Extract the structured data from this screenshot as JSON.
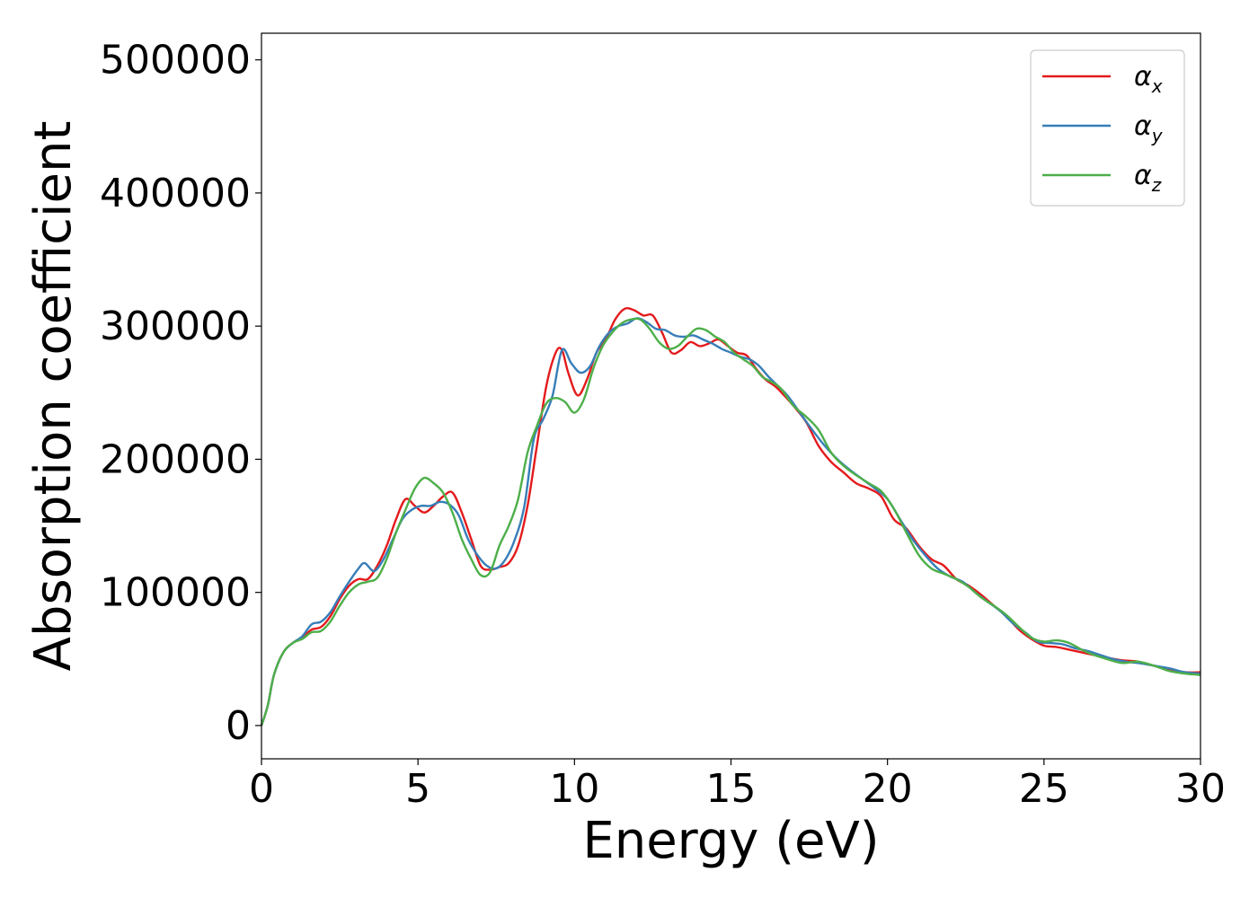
{
  "chart_data": {
    "type": "line",
    "title": "",
    "xlabel": "Energy (eV)",
    "ylabel": "Absorption coefficient",
    "xlim": [
      0,
      30
    ],
    "ylim": [
      -25000,
      520000
    ],
    "xticks": [
      0,
      5,
      10,
      15,
      20,
      25,
      30
    ],
    "yticks": [
      0,
      100000,
      200000,
      300000,
      400000,
      500000
    ],
    "grid": false,
    "legend_position": "top-right",
    "series": [
      {
        "name": "αx",
        "symbol": "α",
        "subscript": "x",
        "color": "#e41a1c",
        "points": [
          [
            0,
            0
          ],
          [
            0.2,
            15000
          ],
          [
            0.4,
            38000
          ],
          [
            0.7,
            55000
          ],
          [
            1.0,
            62000
          ],
          [
            1.3,
            66000
          ],
          [
            1.6,
            72000
          ],
          [
            1.9,
            74000
          ],
          [
            2.2,
            82000
          ],
          [
            2.5,
            95000
          ],
          [
            2.8,
            105000
          ],
          [
            3.1,
            110000
          ],
          [
            3.4,
            110000
          ],
          [
            3.7,
            120000
          ],
          [
            4.0,
            135000
          ],
          [
            4.3,
            155000
          ],
          [
            4.6,
            170000
          ],
          [
            4.9,
            165000
          ],
          [
            5.2,
            160000
          ],
          [
            5.5,
            165000
          ],
          [
            5.8,
            172000
          ],
          [
            6.1,
            175000
          ],
          [
            6.4,
            160000
          ],
          [
            6.7,
            140000
          ],
          [
            7.0,
            120000
          ],
          [
            7.3,
            117000
          ],
          [
            7.6,
            119000
          ],
          [
            7.9,
            122000
          ],
          [
            8.2,
            135000
          ],
          [
            8.5,
            165000
          ],
          [
            8.8,
            210000
          ],
          [
            9.1,
            255000
          ],
          [
            9.4,
            280000
          ],
          [
            9.6,
            282000
          ],
          [
            9.8,
            265000
          ],
          [
            10.1,
            248000
          ],
          [
            10.4,
            260000
          ],
          [
            10.7,
            280000
          ],
          [
            11.0,
            290000
          ],
          [
            11.3,
            305000
          ],
          [
            11.6,
            313000
          ],
          [
            11.9,
            312000
          ],
          [
            12.2,
            308000
          ],
          [
            12.5,
            308000
          ],
          [
            12.8,
            295000
          ],
          [
            13.1,
            280000
          ],
          [
            13.4,
            282000
          ],
          [
            13.7,
            288000
          ],
          [
            14.0,
            285000
          ],
          [
            14.3,
            287000
          ],
          [
            14.6,
            290000
          ],
          [
            14.9,
            285000
          ],
          [
            15.2,
            280000
          ],
          [
            15.5,
            278000
          ],
          [
            15.8,
            268000
          ],
          [
            16.1,
            260000
          ],
          [
            16.4,
            255000
          ],
          [
            16.7,
            248000
          ],
          [
            17.0,
            240000
          ],
          [
            17.4,
            228000
          ],
          [
            17.8,
            210000
          ],
          [
            18.2,
            198000
          ],
          [
            18.6,
            190000
          ],
          [
            19.0,
            182000
          ],
          [
            19.4,
            178000
          ],
          [
            19.8,
            172000
          ],
          [
            20.2,
            155000
          ],
          [
            20.6,
            148000
          ],
          [
            21.0,
            135000
          ],
          [
            21.4,
            125000
          ],
          [
            21.8,
            120000
          ],
          [
            22.2,
            110000
          ],
          [
            22.6,
            105000
          ],
          [
            23.0,
            98000
          ],
          [
            23.4,
            90000
          ],
          [
            23.8,
            82000
          ],
          [
            24.2,
            72000
          ],
          [
            24.6,
            65000
          ],
          [
            25.0,
            60000
          ],
          [
            25.4,
            59000
          ],
          [
            25.8,
            57000
          ],
          [
            26.2,
            55000
          ],
          [
            26.6,
            53000
          ],
          [
            27.0,
            51000
          ],
          [
            27.5,
            49000
          ],
          [
            28.0,
            48000
          ],
          [
            28.5,
            45000
          ],
          [
            29.0,
            42000
          ],
          [
            29.5,
            40000
          ],
          [
            30.0,
            40000
          ]
        ]
      },
      {
        "name": "αy",
        "symbol": "α",
        "subscript": "y",
        "color": "#377eb8",
        "points": [
          [
            0,
            0
          ],
          [
            0.2,
            15000
          ],
          [
            0.4,
            38000
          ],
          [
            0.7,
            55000
          ],
          [
            1.0,
            62000
          ],
          [
            1.3,
            67000
          ],
          [
            1.6,
            76000
          ],
          [
            1.9,
            78000
          ],
          [
            2.2,
            85000
          ],
          [
            2.5,
            97000
          ],
          [
            2.8,
            108000
          ],
          [
            3.1,
            118000
          ],
          [
            3.3,
            122000
          ],
          [
            3.6,
            116000
          ],
          [
            3.9,
            125000
          ],
          [
            4.2,
            140000
          ],
          [
            4.5,
            155000
          ],
          [
            4.8,
            162000
          ],
          [
            5.1,
            165000
          ],
          [
            5.4,
            165000
          ],
          [
            5.7,
            168000
          ],
          [
            6.0,
            166000
          ],
          [
            6.3,
            158000
          ],
          [
            6.6,
            140000
          ],
          [
            6.9,
            128000
          ],
          [
            7.2,
            120000
          ],
          [
            7.5,
            118000
          ],
          [
            7.8,
            125000
          ],
          [
            8.1,
            140000
          ],
          [
            8.4,
            165000
          ],
          [
            8.7,
            215000
          ],
          [
            9.0,
            230000
          ],
          [
            9.3,
            248000
          ],
          [
            9.6,
            282000
          ],
          [
            9.9,
            272000
          ],
          [
            10.2,
            265000
          ],
          [
            10.5,
            270000
          ],
          [
            10.8,
            285000
          ],
          [
            11.1,
            295000
          ],
          [
            11.4,
            300000
          ],
          [
            11.7,
            302000
          ],
          [
            12.0,
            306000
          ],
          [
            12.3,
            303000
          ],
          [
            12.6,
            298000
          ],
          [
            12.9,
            297000
          ],
          [
            13.2,
            293000
          ],
          [
            13.5,
            292000
          ],
          [
            13.8,
            293000
          ],
          [
            14.1,
            290000
          ],
          [
            14.4,
            287000
          ],
          [
            14.7,
            283000
          ],
          [
            15.0,
            280000
          ],
          [
            15.3,
            277000
          ],
          [
            15.6,
            275000
          ],
          [
            15.9,
            270000
          ],
          [
            16.2,
            262000
          ],
          [
            16.5,
            255000
          ],
          [
            16.8,
            248000
          ],
          [
            17.2,
            235000
          ],
          [
            17.6,
            222000
          ],
          [
            18.0,
            210000
          ],
          [
            18.4,
            200000
          ],
          [
            18.8,
            192000
          ],
          [
            19.2,
            185000
          ],
          [
            19.6,
            178000
          ],
          [
            20.0,
            170000
          ],
          [
            20.4,
            155000
          ],
          [
            20.8,
            140000
          ],
          [
            21.2,
            128000
          ],
          [
            21.6,
            118000
          ],
          [
            22.0,
            112000
          ],
          [
            22.4,
            108000
          ],
          [
            22.8,
            100000
          ],
          [
            23.2,
            93000
          ],
          [
            23.6,
            86000
          ],
          [
            24.0,
            77000
          ],
          [
            24.4,
            70000
          ],
          [
            24.8,
            63000
          ],
          [
            25.2,
            62000
          ],
          [
            25.6,
            61000
          ],
          [
            26.0,
            58000
          ],
          [
            26.4,
            56000
          ],
          [
            26.8,
            53000
          ],
          [
            27.2,
            50000
          ],
          [
            27.6,
            48000
          ],
          [
            28.0,
            47000
          ],
          [
            28.5,
            45000
          ],
          [
            29.0,
            43000
          ],
          [
            29.5,
            40000
          ],
          [
            30.0,
            39000
          ]
        ]
      },
      {
        "name": "αz",
        "symbol": "α",
        "subscript": "z",
        "color": "#4daf4a",
        "points": [
          [
            0,
            0
          ],
          [
            0.2,
            15000
          ],
          [
            0.4,
            38000
          ],
          [
            0.7,
            55000
          ],
          [
            1.0,
            62000
          ],
          [
            1.3,
            65000
          ],
          [
            1.6,
            70000
          ],
          [
            1.9,
            71000
          ],
          [
            2.2,
            78000
          ],
          [
            2.5,
            90000
          ],
          [
            2.8,
            100000
          ],
          [
            3.1,
            106000
          ],
          [
            3.4,
            108000
          ],
          [
            3.7,
            111000
          ],
          [
            4.0,
            125000
          ],
          [
            4.3,
            145000
          ],
          [
            4.6,
            162000
          ],
          [
            4.9,
            178000
          ],
          [
            5.2,
            186000
          ],
          [
            5.5,
            182000
          ],
          [
            5.8,
            175000
          ],
          [
            6.1,
            160000
          ],
          [
            6.4,
            140000
          ],
          [
            6.7,
            125000
          ],
          [
            7.0,
            113000
          ],
          [
            7.3,
            115000
          ],
          [
            7.6,
            135000
          ],
          [
            7.9,
            150000
          ],
          [
            8.2,
            170000
          ],
          [
            8.5,
            205000
          ],
          [
            8.8,
            225000
          ],
          [
            9.1,
            242000
          ],
          [
            9.4,
            246000
          ],
          [
            9.7,
            243000
          ],
          [
            10.0,
            235000
          ],
          [
            10.3,
            245000
          ],
          [
            10.6,
            268000
          ],
          [
            10.9,
            285000
          ],
          [
            11.2,
            295000
          ],
          [
            11.5,
            302000
          ],
          [
            11.8,
            305000
          ],
          [
            12.1,
            305000
          ],
          [
            12.4,
            298000
          ],
          [
            12.7,
            288000
          ],
          [
            13.0,
            283000
          ],
          [
            13.3,
            285000
          ],
          [
            13.6,
            292000
          ],
          [
            13.9,
            298000
          ],
          [
            14.2,
            297000
          ],
          [
            14.5,
            292000
          ],
          [
            14.8,
            288000
          ],
          [
            15.1,
            280000
          ],
          [
            15.4,
            275000
          ],
          [
            15.7,
            270000
          ],
          [
            16.0,
            262000
          ],
          [
            16.3,
            258000
          ],
          [
            16.6,
            253000
          ],
          [
            17.0,
            240000
          ],
          [
            17.4,
            232000
          ],
          [
            17.8,
            222000
          ],
          [
            18.2,
            205000
          ],
          [
            18.6,
            195000
          ],
          [
            19.0,
            188000
          ],
          [
            19.4,
            182000
          ],
          [
            19.8,
            176000
          ],
          [
            20.2,
            163000
          ],
          [
            20.6,
            145000
          ],
          [
            21.0,
            128000
          ],
          [
            21.4,
            118000
          ],
          [
            21.8,
            114000
          ],
          [
            22.2,
            110000
          ],
          [
            22.6,
            104000
          ],
          [
            23.0,
            96000
          ],
          [
            23.4,
            90000
          ],
          [
            23.8,
            83000
          ],
          [
            24.2,
            74000
          ],
          [
            24.6,
            66000
          ],
          [
            25.0,
            63000
          ],
          [
            25.4,
            64000
          ],
          [
            25.8,
            62000
          ],
          [
            26.2,
            57000
          ],
          [
            26.6,
            53000
          ],
          [
            27.0,
            50000
          ],
          [
            27.5,
            47000
          ],
          [
            28.0,
            48000
          ],
          [
            28.5,
            45000
          ],
          [
            29.0,
            41000
          ],
          [
            29.5,
            39000
          ],
          [
            30.0,
            38000
          ]
        ]
      }
    ]
  }
}
